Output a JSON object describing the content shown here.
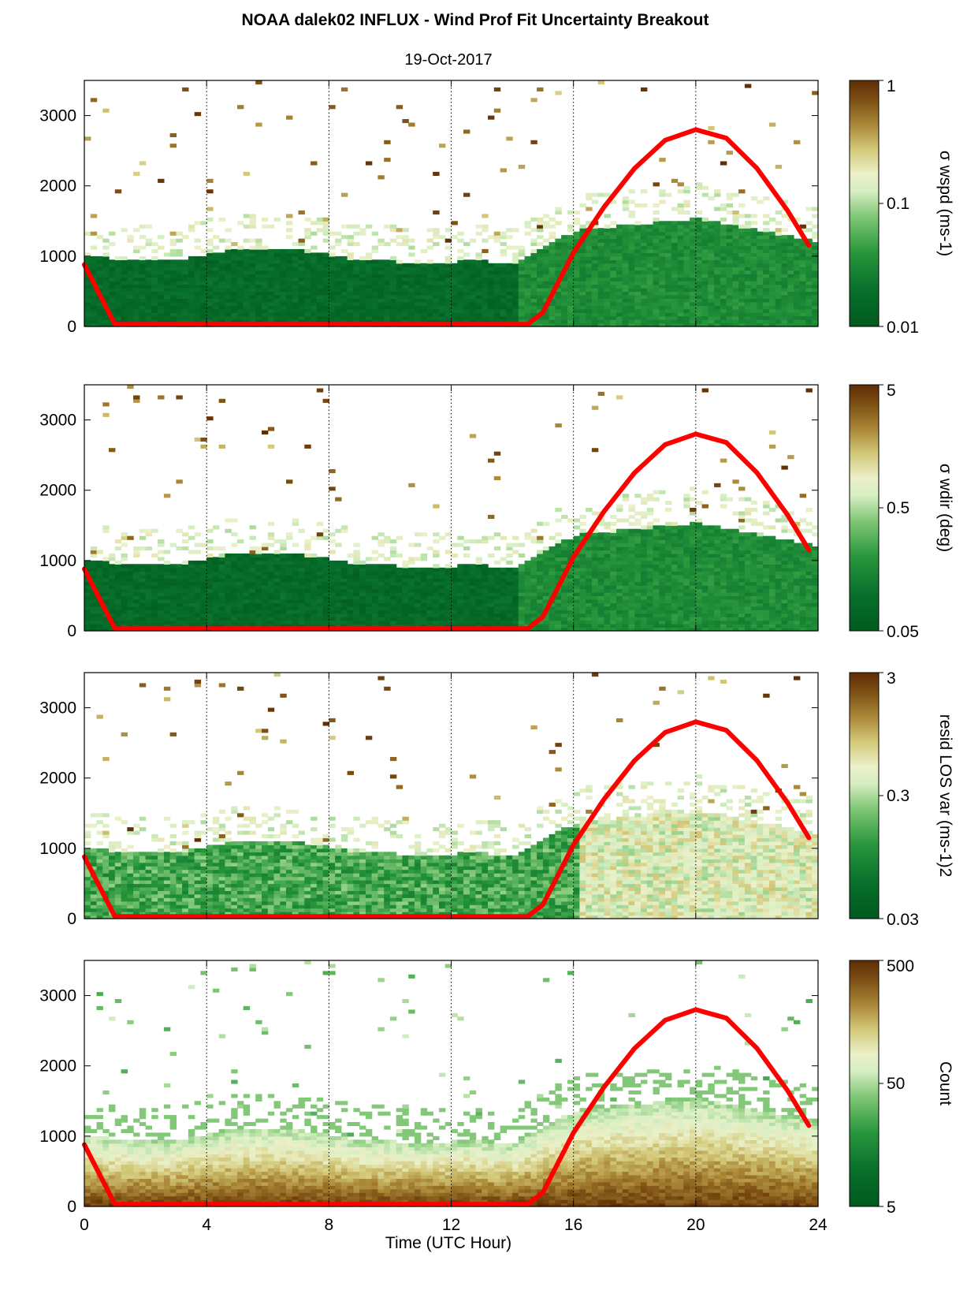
{
  "figure": {
    "title": "NOAA dalek02 INFLUX - Wind Prof Fit Uncertainty Breakout",
    "subtitle": "19-Oct-2017",
    "xlabel": "Time (UTC Hour)"
  },
  "chart_data": [
    {
      "type": "heatmap",
      "xlim": [
        0,
        24
      ],
      "ylim": [
        0,
        3500
      ],
      "x_ticks": [
        0,
        4,
        8,
        12,
        16,
        20,
        24
      ],
      "y_ticks": [
        0,
        1000,
        2000,
        3000
      ],
      "y_tick_labels": [
        "0",
        "1000",
        "2000",
        "3000"
      ],
      "grid": "vertical dotted lines at x ticks",
      "colorbar": {
        "label": "σ wspd (ms-1)",
        "scale": "log",
        "range": [
          0.01,
          1
        ],
        "ticks": [
          "1",
          "0.1",
          "0.01"
        ],
        "colormap": "green-to-brown"
      },
      "mixing_layer": {
        "base": 1000,
        "peak_time": 20,
        "peak_height": 1350,
        "fall_time": 23.7
      },
      "overlay_line": {
        "color": "#ff0000",
        "points": [
          [
            0,
            880
          ],
          [
            1,
            30
          ],
          [
            14.5,
            30
          ],
          [
            15,
            200
          ],
          [
            16,
            1050
          ],
          [
            17,
            1700
          ],
          [
            18,
            2250
          ],
          [
            19,
            2650
          ],
          [
            20,
            2800
          ],
          [
            21,
            2680
          ],
          [
            22,
            2250
          ],
          [
            23,
            1650
          ],
          [
            23.7,
            1150
          ]
        ]
      }
    },
    {
      "type": "heatmap",
      "xlim": [
        0,
        24
      ],
      "ylim": [
        0,
        3500
      ],
      "x_ticks": [
        0,
        4,
        8,
        12,
        16,
        20,
        24
      ],
      "y_ticks": [
        0,
        1000,
        2000,
        3000
      ],
      "y_tick_labels": [
        "0",
        "1000",
        "2000",
        "3000"
      ],
      "grid": "vertical dotted lines at x ticks",
      "colorbar": {
        "label": "σ wdir (deg)",
        "scale": "log",
        "range": [
          0.05,
          5
        ],
        "ticks": [
          "5",
          "0.5",
          "0.05"
        ],
        "colormap": "green-to-brown"
      },
      "mixing_layer": {
        "base": 1000,
        "peak_time": 20,
        "peak_height": 1350,
        "fall_time": 23.7
      },
      "overlay_line": {
        "color": "#ff0000",
        "points": [
          [
            0,
            880
          ],
          [
            1,
            30
          ],
          [
            14.5,
            30
          ],
          [
            15,
            200
          ],
          [
            16,
            1050
          ],
          [
            17,
            1700
          ],
          [
            18,
            2250
          ],
          [
            19,
            2650
          ],
          [
            20,
            2800
          ],
          [
            21,
            2680
          ],
          [
            22,
            2250
          ],
          [
            23,
            1650
          ],
          [
            23.7,
            1150
          ]
        ]
      }
    },
    {
      "type": "heatmap",
      "xlim": [
        0,
        24
      ],
      "ylim": [
        0,
        3500
      ],
      "x_ticks": [
        0,
        4,
        8,
        12,
        16,
        20,
        24
      ],
      "y_ticks": [
        0,
        1000,
        2000,
        3000
      ],
      "y_tick_labels": [
        "0",
        "1000",
        "2000",
        "3000"
      ],
      "grid": "vertical dotted lines at x ticks",
      "colorbar": {
        "label": "resid LOS var (ms-1)2",
        "scale": "log",
        "range": [
          0.03,
          3
        ],
        "ticks": [
          "3",
          "0.3",
          "0.03"
        ],
        "colormap": "green-to-brown"
      },
      "mixing_layer": {
        "base": 1000,
        "peak_time": 20,
        "peak_height": 1350,
        "fall_time": 23.7
      },
      "overlay_line": {
        "color": "#ff0000",
        "points": [
          [
            0,
            880
          ],
          [
            1,
            30
          ],
          [
            14.5,
            30
          ],
          [
            15,
            200
          ],
          [
            16,
            1050
          ],
          [
            17,
            1700
          ],
          [
            18,
            2250
          ],
          [
            19,
            2650
          ],
          [
            20,
            2800
          ],
          [
            21,
            2680
          ],
          [
            22,
            2250
          ],
          [
            23,
            1650
          ],
          [
            23.7,
            1150
          ]
        ]
      }
    },
    {
      "type": "heatmap",
      "xlim": [
        0,
        24
      ],
      "ylim": [
        0,
        3500
      ],
      "x_ticks": [
        0,
        4,
        8,
        12,
        16,
        20,
        24
      ],
      "x_tick_labels": [
        "0",
        "4",
        "8",
        "12",
        "16",
        "20",
        "24"
      ],
      "y_ticks": [
        0,
        1000,
        2000,
        3000
      ],
      "y_tick_labels": [
        "0",
        "1000",
        "2000",
        "3000"
      ],
      "grid": "vertical dotted lines at x ticks",
      "colorbar": {
        "label": "Count",
        "scale": "log",
        "range": [
          0.5,
          500
        ],
        "ticks": [
          "500",
          "50",
          "5"
        ],
        "colormap": "green-to-brown"
      },
      "mixing_layer": {
        "base": 1000,
        "peak_time": 20,
        "peak_height": 1350,
        "fall_time": 23.7
      },
      "overlay_line": {
        "color": "#ff0000",
        "points": [
          [
            0,
            880
          ],
          [
            1,
            30
          ],
          [
            14.5,
            30
          ],
          [
            15,
            200
          ],
          [
            16,
            1050
          ],
          [
            17,
            1700
          ],
          [
            18,
            2250
          ],
          [
            19,
            2650
          ],
          [
            20,
            2800
          ],
          [
            21,
            2680
          ],
          [
            22,
            2250
          ],
          [
            23,
            1650
          ],
          [
            23.7,
            1150
          ]
        ]
      }
    }
  ]
}
